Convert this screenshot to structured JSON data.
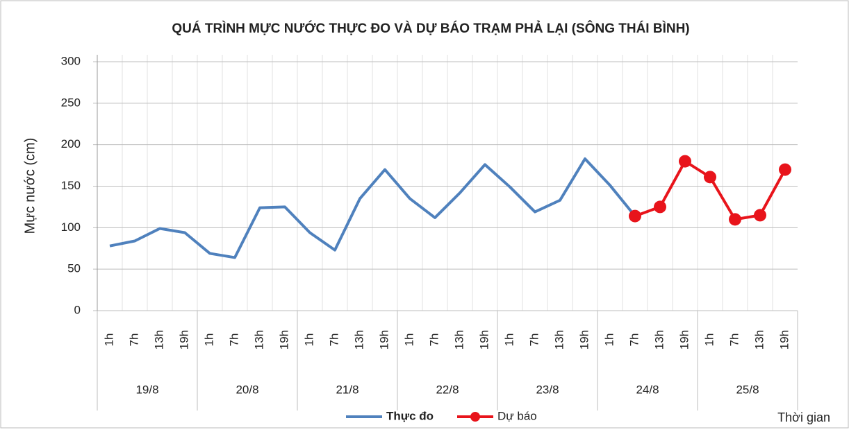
{
  "chart_data": {
    "type": "line",
    "title": "QUÁ TRÌNH MỰC NƯỚC THỰC ĐO VÀ DỰ BÁO TRẠM PHẢ LẠI (SÔNG THÁI BÌNH)",
    "y_label": "Mực nước (cm)",
    "x_label": "Thời gian",
    "categories": [
      "1h",
      "7h",
      "13h",
      "19h",
      "1h",
      "7h",
      "13h",
      "19h",
      "1h",
      "7h",
      "13h",
      "19h",
      "1h",
      "7h",
      "13h",
      "19h",
      "1h",
      "7h",
      "13h",
      "19h",
      "1h",
      "7h",
      "13h",
      "19h",
      "1h",
      "7h",
      "13h",
      "19h"
    ],
    "category_groups": [
      "19/8",
      "20/8",
      "21/8",
      "22/8",
      "23/8",
      "24/8",
      "25/8"
    ],
    "series": [
      {
        "name": "Thực đo",
        "color": "#4f81bd",
        "markers": false,
        "values": [
          78,
          84,
          99,
          94,
          69,
          64,
          124,
          125,
          94,
          73,
          135,
          170,
          135,
          112,
          142,
          176,
          149,
          119,
          133,
          183,
          151,
          114,
          null,
          null,
          null,
          null,
          null,
          null
        ]
      },
      {
        "name": "Dự báo",
        "color": "#e8141b",
        "markers": true,
        "values": [
          null,
          null,
          null,
          null,
          null,
          null,
          null,
          null,
          null,
          null,
          null,
          null,
          null,
          null,
          null,
          null,
          null,
          null,
          null,
          null,
          null,
          114,
          125,
          180,
          161,
          110,
          115,
          170
        ]
      }
    ],
    "ylim": [
      0,
      300
    ],
    "yticks": [
      0,
      50,
      100,
      150,
      200,
      250,
      300
    ],
    "grid": true,
    "legend": "bottom"
  }
}
